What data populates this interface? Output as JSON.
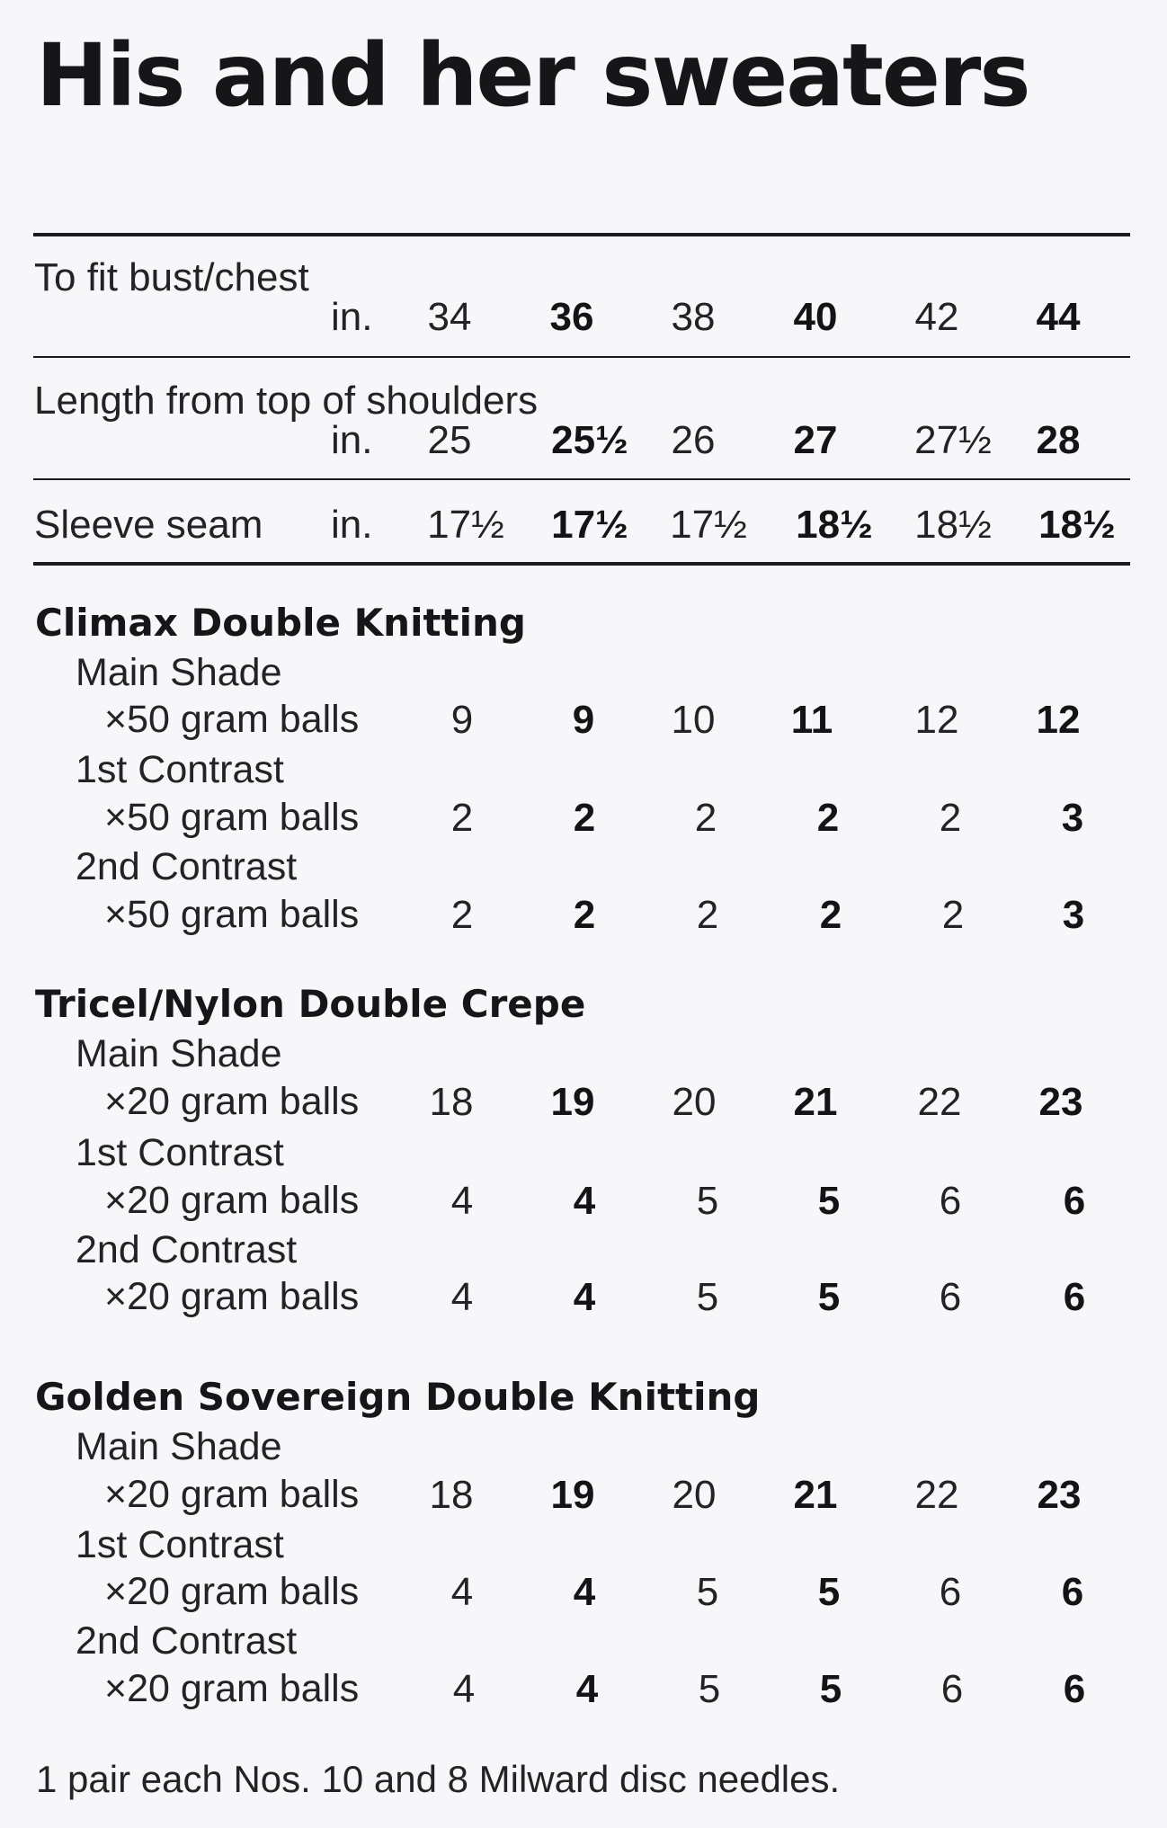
{
  "title": "His and her sweaters",
  "measurements": [
    {
      "label": "To fit bust/chest",
      "unit": "in.",
      "values": [
        "34",
        "36",
        "38",
        "40",
        "42",
        "44"
      ]
    },
    {
      "label": "Length from top of shoulders",
      "unit": "in.",
      "values": [
        "25",
        "25½",
        "26",
        "27",
        "27½",
        "28"
      ]
    },
    {
      "label": "Sleeve seam",
      "unit": "in.",
      "values": [
        "17½",
        "17½",
        "17½",
        "18½",
        "18½",
        "18½"
      ]
    }
  ],
  "yarns": [
    {
      "name": "Climax Double Knitting",
      "shades": [
        {
          "shade": "Main Shade",
          "balls": "×50 gram balls",
          "values": [
            "9",
            "9",
            "10",
            "11",
            "12",
            "12"
          ]
        },
        {
          "shade": "1st Contrast",
          "balls": "×50 gram balls",
          "values": [
            "2",
            "2",
            "2",
            "2",
            "2",
            "3"
          ]
        },
        {
          "shade": "2nd Contrast",
          "balls": "×50 gram balls",
          "values": [
            "2",
            "2",
            "2",
            "2",
            "2",
            "3"
          ]
        }
      ]
    },
    {
      "name": "Tricel/Nylon Double Crepe",
      "shades": [
        {
          "shade": "Main Shade",
          "balls": "×20 gram balls",
          "values": [
            "18",
            "19",
            "20",
            "21",
            "22",
            "23"
          ]
        },
        {
          "shade": "1st Contrast",
          "balls": "×20 gram balls",
          "values": [
            "4",
            "4",
            "5",
            "5",
            "6",
            "6"
          ]
        },
        {
          "shade": "2nd Contrast",
          "balls": "×20 gram balls",
          "values": [
            "4",
            "4",
            "5",
            "5",
            "6",
            "6"
          ]
        }
      ]
    },
    {
      "name": "Golden Sovereign Double Knitting",
      "shades": [
        {
          "shade": "Main Shade",
          "balls": "×20 gram balls",
          "values": [
            "18",
            "19",
            "20",
            "21",
            "22",
            "23"
          ]
        },
        {
          "shade": "1st Contrast",
          "balls": "×20 gram balls",
          "values": [
            "4",
            "4",
            "5",
            "5",
            "6",
            "6"
          ]
        },
        {
          "shade": "2nd Contrast",
          "balls": "×20 gram balls",
          "values": [
            "4",
            "4",
            "5",
            "5",
            "6",
            "6"
          ]
        }
      ]
    }
  ],
  "footer": "1 pair each Nos. 10 and 8 Milward disc needles."
}
